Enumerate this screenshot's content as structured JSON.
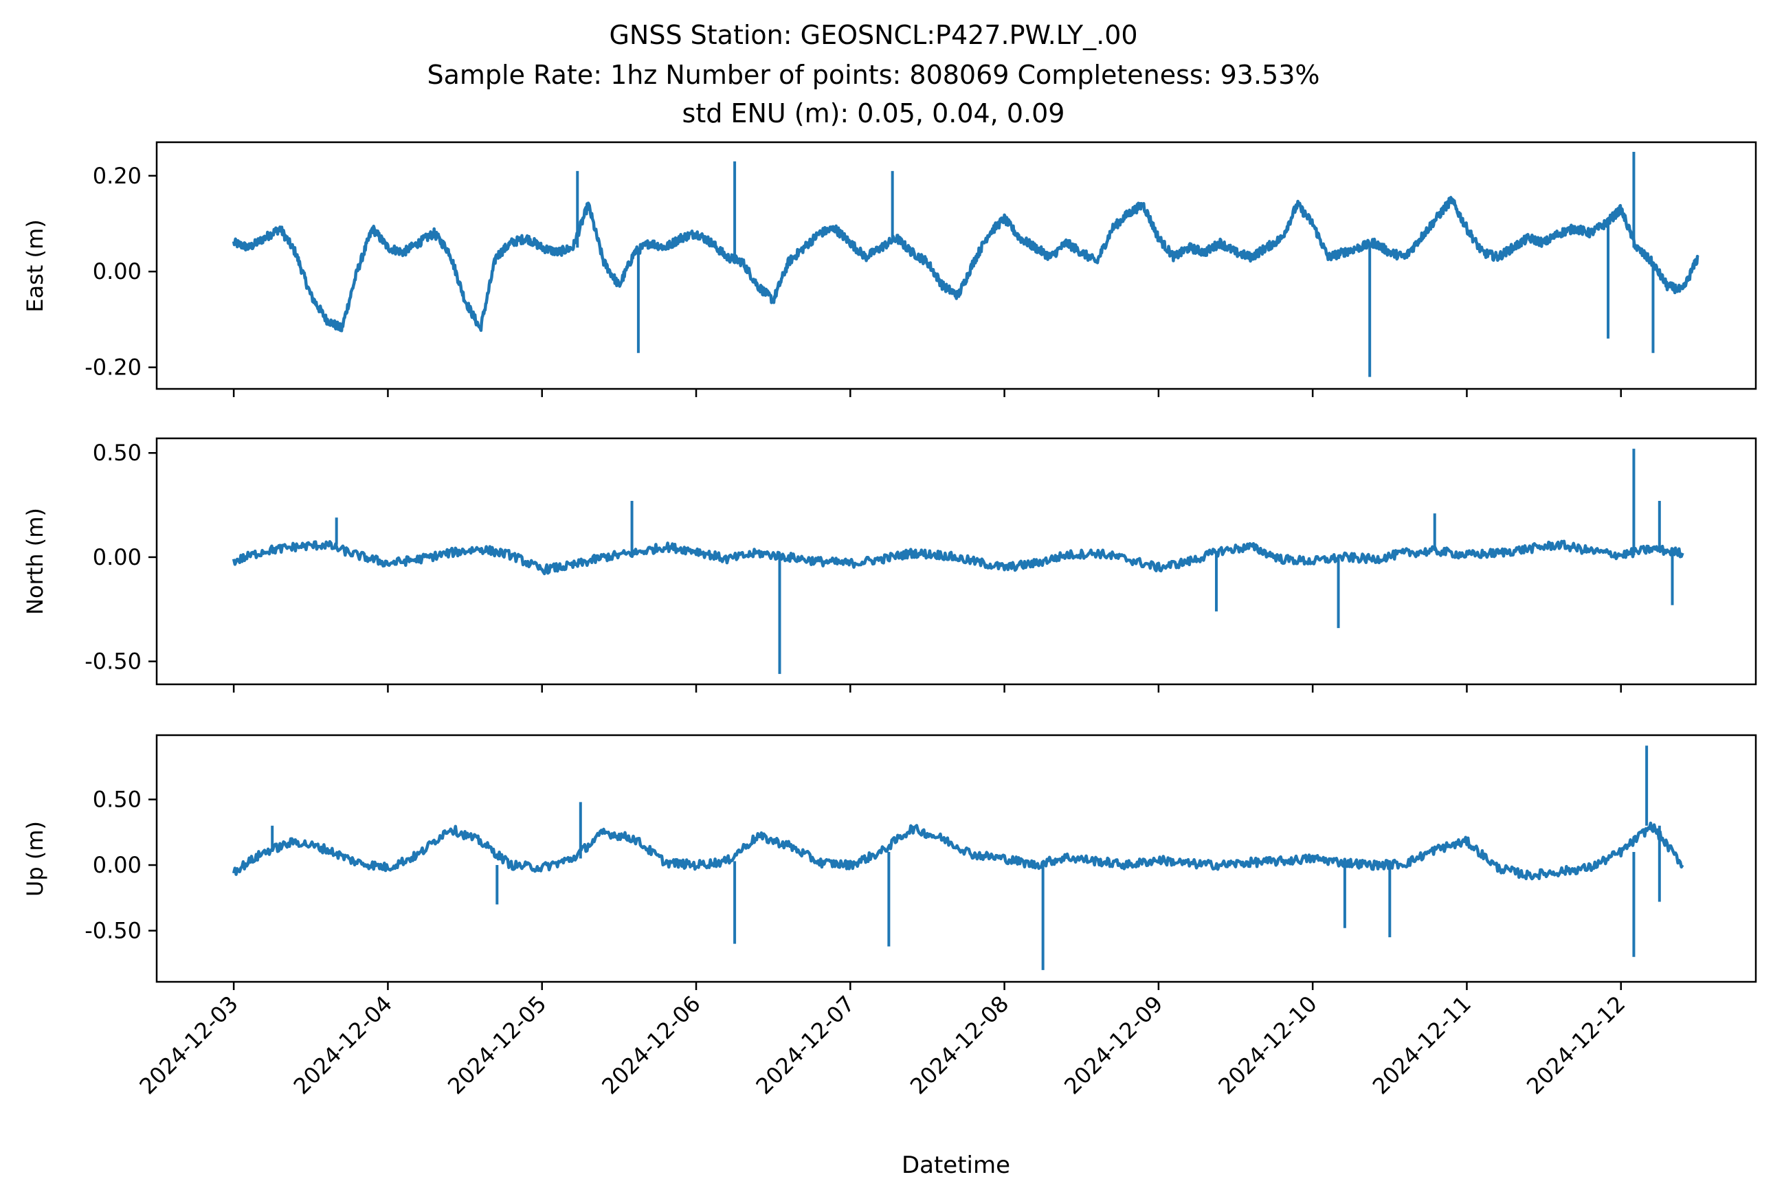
{
  "title_lines": [
    "GNSS Station: GEOSNCL:P427.PW.LY_.00",
    "Sample Rate: 1hz   Number of points: 808069    Completeness:  93.53%",
    "std ENU (m):  0.05, 0.04, 0.09"
  ],
  "xlabel": "Datetime",
  "x_tick_labels": [
    "2024-12-03",
    "2024-12-04",
    "2024-12-05",
    "2024-12-06",
    "2024-12-07",
    "2024-12-08",
    "2024-12-09",
    "2024-12-10",
    "2024-12-11",
    "2024-12-12"
  ],
  "colors": {
    "series": "#1f77b4"
  },
  "chart_data": [
    {
      "type": "line",
      "ylabel": "East (m)",
      "x_range": [
        "2024-12-02T12:00",
        "2024-12-12T21:00"
      ],
      "ylim": [
        -0.245,
        0.27
      ],
      "yticks": [
        0.2,
        0.0,
        -0.2
      ],
      "ytick_labels": [
        "0.20",
        "0.00",
        "-0.20"
      ],
      "grid": false,
      "series": [
        {
          "x": [
            "2024-12-03T00:00",
            "2024-12-03T02:24",
            "2024-12-03T04:48",
            "2024-12-03T07:12",
            "2024-12-03T09:36",
            "2024-12-03T12:00",
            "2024-12-03T14:24",
            "2024-12-03T16:48",
            "2024-12-03T19:12",
            "2024-12-03T21:36",
            "2024-12-04T00:00",
            "2024-12-04T02:24",
            "2024-12-04T04:48",
            "2024-12-04T07:12",
            "2024-12-04T09:36",
            "2024-12-04T12:00",
            "2024-12-04T14:24",
            "2024-12-04T16:48",
            "2024-12-04T19:12",
            "2024-12-04T21:36",
            "2024-12-05T00:00",
            "2024-12-05T02:24",
            "2024-12-05T04:48",
            "2024-12-05T07:12",
            "2024-12-05T09:36",
            "2024-12-05T12:00",
            "2024-12-05T14:24",
            "2024-12-05T16:48",
            "2024-12-05T19:12",
            "2024-12-05T21:36",
            "2024-12-06T00:00",
            "2024-12-06T02:24",
            "2024-12-06T04:48",
            "2024-12-06T07:12",
            "2024-12-06T09:36",
            "2024-12-06T12:00",
            "2024-12-06T14:24",
            "2024-12-06T16:48",
            "2024-12-06T19:12",
            "2024-12-06T21:36",
            "2024-12-07T00:00",
            "2024-12-07T02:24",
            "2024-12-07T04:48",
            "2024-12-07T07:12",
            "2024-12-07T09:36",
            "2024-12-07T12:00",
            "2024-12-07T14:24",
            "2024-12-07T16:48",
            "2024-12-07T19:12",
            "2024-12-07T21:36",
            "2024-12-08T00:00",
            "2024-12-08T02:24",
            "2024-12-08T04:48",
            "2024-12-08T07:12",
            "2024-12-08T09:36",
            "2024-12-08T12:00",
            "2024-12-08T14:24",
            "2024-12-08T16:48",
            "2024-12-08T19:12",
            "2024-12-08T21:36",
            "2024-12-09T00:00",
            "2024-12-09T02:24",
            "2024-12-09T04:48",
            "2024-12-09T07:12",
            "2024-12-09T09:36",
            "2024-12-09T12:00",
            "2024-12-09T14:24",
            "2024-12-09T16:48",
            "2024-12-09T19:12",
            "2024-12-09T21:36",
            "2024-12-10T00:00",
            "2024-12-10T02:24",
            "2024-12-10T04:48",
            "2024-12-10T07:12",
            "2024-12-10T09:36",
            "2024-12-10T12:00",
            "2024-12-10T14:24",
            "2024-12-10T16:48",
            "2024-12-10T19:12",
            "2024-12-10T21:36",
            "2024-12-11T00:00",
            "2024-12-11T02:24",
            "2024-12-11T04:48",
            "2024-12-11T07:12",
            "2024-12-11T09:36",
            "2024-12-11T12:00",
            "2024-12-11T14:24",
            "2024-12-11T16:48",
            "2024-12-11T19:12",
            "2024-12-11T21:36",
            "2024-12-12T00:00",
            "2024-12-12T02:24",
            "2024-12-12T04:48",
            "2024-12-12T07:12",
            "2024-12-12T09:36",
            "2024-12-12T12:00"
          ],
          "y": [
            0.06,
            0.05,
            0.07,
            0.09,
            0.04,
            -0.05,
            -0.1,
            -0.12,
            0.0,
            0.09,
            0.05,
            0.04,
            0.06,
            0.08,
            0.04,
            -0.06,
            -0.12,
            0.03,
            0.06,
            0.07,
            0.05,
            0.04,
            0.05,
            0.14,
            0.02,
            -0.03,
            0.04,
            0.06,
            0.05,
            0.07,
            0.08,
            0.06,
            0.03,
            0.02,
            -0.03,
            -0.06,
            0.02,
            0.05,
            0.08,
            0.09,
            0.06,
            0.03,
            0.05,
            0.07,
            0.04,
            0.02,
            -0.03,
            -0.05,
            0.02,
            0.08,
            0.11,
            0.07,
            0.05,
            0.03,
            0.06,
            0.04,
            0.02,
            0.09,
            0.12,
            0.14,
            0.07,
            0.03,
            0.05,
            0.04,
            0.06,
            0.04,
            0.03,
            0.05,
            0.07,
            0.14,
            0.1,
            0.03,
            0.04,
            0.05,
            0.06,
            0.04,
            0.03,
            0.07,
            0.11,
            0.15,
            0.09,
            0.04,
            0.03,
            0.05,
            0.07,
            0.06,
            0.08,
            0.09,
            0.08,
            0.1,
            0.13,
            0.05,
            0.02,
            -0.03,
            -0.04,
            0.03
          ]
        }
      ],
      "spikes": [
        {
          "x": "2024-12-05T05:31",
          "y": 0.21
        },
        {
          "x": "2024-12-05T15:00",
          "y": -0.17
        },
        {
          "x": "2024-12-06T06:00",
          "y": 0.23
        },
        {
          "x": "2024-12-07T06:34",
          "y": 0.21
        },
        {
          "x": "2024-12-10T08:53",
          "y": -0.22
        },
        {
          "x": "2024-12-11T22:00",
          "y": -0.14
        },
        {
          "x": "2024-12-12T02:00",
          "y": 0.25
        },
        {
          "x": "2024-12-12T05:00",
          "y": -0.17
        }
      ]
    },
    {
      "type": "line",
      "ylabel": "North (m)",
      "x_range": [
        "2024-12-02T12:00",
        "2024-12-12T21:00"
      ],
      "ylim": [
        -0.61,
        0.57
      ],
      "yticks": [
        0.5,
        0.0,
        -0.5
      ],
      "ytick_labels": [
        "0.50",
        "0.00",
        "-0.50"
      ],
      "grid": false,
      "series": [
        {
          "x": [
            "2024-12-03T00:00",
            "2024-12-03T04:48",
            "2024-12-03T09:36",
            "2024-12-03T14:24",
            "2024-12-03T19:12",
            "2024-12-04T00:00",
            "2024-12-04T04:48",
            "2024-12-04T09:36",
            "2024-12-04T14:24",
            "2024-12-04T19:12",
            "2024-12-05T00:00",
            "2024-12-05T04:48",
            "2024-12-05T09:36",
            "2024-12-05T14:24",
            "2024-12-05T19:12",
            "2024-12-06T00:00",
            "2024-12-06T04:48",
            "2024-12-06T09:36",
            "2024-12-06T14:24",
            "2024-12-06T19:12",
            "2024-12-07T00:00",
            "2024-12-07T04:48",
            "2024-12-07T09:36",
            "2024-12-07T14:24",
            "2024-12-07T19:12",
            "2024-12-08T00:00",
            "2024-12-08T04:48",
            "2024-12-08T09:36",
            "2024-12-08T14:24",
            "2024-12-08T19:12",
            "2024-12-09T00:00",
            "2024-12-09T04:48",
            "2024-12-09T09:36",
            "2024-12-09T14:24",
            "2024-12-09T19:12",
            "2024-12-10T00:00",
            "2024-12-10T04:48",
            "2024-12-10T09:36",
            "2024-12-10T14:24",
            "2024-12-10T19:12",
            "2024-12-11T00:00",
            "2024-12-11T04:48",
            "2024-12-11T09:36",
            "2024-12-11T14:24",
            "2024-12-11T19:12",
            "2024-12-12T00:00",
            "2024-12-12T04:48",
            "2024-12-12T09:36"
          ],
          "y": [
            -0.02,
            0.03,
            0.05,
            0.06,
            0.01,
            -0.03,
            -0.01,
            0.02,
            0.04,
            0.01,
            -0.06,
            -0.04,
            0.0,
            0.02,
            0.05,
            0.03,
            -0.01,
            0.02,
            0.0,
            -0.02,
            -0.03,
            -0.01,
            0.02,
            0.01,
            -0.02,
            -0.05,
            -0.03,
            0.01,
            0.02,
            -0.01,
            -0.05,
            -0.02,
            0.03,
            0.05,
            -0.01,
            -0.02,
            0.0,
            -0.01,
            0.02,
            0.03,
            0.01,
            0.02,
            0.04,
            0.06,
            0.03,
            0.01,
            0.04,
            0.02
          ]
        }
      ],
      "spikes": [
        {
          "x": "2024-12-03T16:00",
          "y": 0.19
        },
        {
          "x": "2024-12-05T14:00",
          "y": 0.27
        },
        {
          "x": "2024-12-06T13:00",
          "y": -0.56
        },
        {
          "x": "2024-12-09T09:00",
          "y": -0.26
        },
        {
          "x": "2024-12-10T04:00",
          "y": -0.34
        },
        {
          "x": "2024-12-10T19:00",
          "y": 0.21
        },
        {
          "x": "2024-12-12T02:00",
          "y": 0.52
        },
        {
          "x": "2024-12-12T06:00",
          "y": 0.27
        },
        {
          "x": "2024-12-12T08:00",
          "y": -0.23
        }
      ]
    },
    {
      "type": "line",
      "ylabel": "Up (m)",
      "x_range": [
        "2024-12-02T12:00",
        "2024-12-12T21:00"
      ],
      "ylim": [
        -0.89,
        0.99
      ],
      "yticks": [
        0.5,
        0.0,
        -0.5
      ],
      "ytick_labels": [
        "0.50",
        "0.00",
        "-0.50"
      ],
      "grid": false,
      "series": [
        {
          "x": [
            "2024-12-03T00:00",
            "2024-12-03T04:48",
            "2024-12-03T09:36",
            "2024-12-03T14:24",
            "2024-12-03T19:12",
            "2024-12-04T00:00",
            "2024-12-04T04:48",
            "2024-12-04T09:36",
            "2024-12-04T14:24",
            "2024-12-04T19:12",
            "2024-12-05T00:00",
            "2024-12-05T04:48",
            "2024-12-05T09:36",
            "2024-12-05T14:24",
            "2024-12-05T19:12",
            "2024-12-06T00:00",
            "2024-12-06T04:48",
            "2024-12-06T09:36",
            "2024-12-06T14:24",
            "2024-12-06T19:12",
            "2024-12-07T00:00",
            "2024-12-07T04:48",
            "2024-12-07T09:36",
            "2024-12-07T14:24",
            "2024-12-07T19:12",
            "2024-12-08T00:00",
            "2024-12-08T04:48",
            "2024-12-08T09:36",
            "2024-12-08T14:24",
            "2024-12-08T19:12",
            "2024-12-09T00:00",
            "2024-12-09T04:48",
            "2024-12-09T09:36",
            "2024-12-09T14:24",
            "2024-12-09T19:12",
            "2024-12-10T00:00",
            "2024-12-10T04:48",
            "2024-12-10T09:36",
            "2024-12-10T14:24",
            "2024-12-10T19:12",
            "2024-12-11T00:00",
            "2024-12-11T04:48",
            "2024-12-11T09:36",
            "2024-12-11T14:24",
            "2024-12-11T19:12",
            "2024-12-12T00:00",
            "2024-12-12T04:48",
            "2024-12-12T09:36"
          ],
          "y": [
            -0.05,
            0.1,
            0.18,
            0.12,
            0.02,
            -0.02,
            0.08,
            0.28,
            0.18,
            0.0,
            -0.02,
            0.05,
            0.25,
            0.2,
            0.02,
            0.0,
            0.03,
            0.22,
            0.15,
            0.02,
            0.0,
            0.1,
            0.28,
            0.2,
            0.08,
            0.05,
            0.0,
            0.06,
            0.03,
            0.0,
            0.04,
            0.01,
            0.0,
            0.02,
            0.03,
            0.05,
            0.02,
            0.0,
            0.01,
            0.12,
            0.18,
            -0.02,
            -0.08,
            -0.05,
            -0.02,
            0.1,
            0.3,
            0.0
          ]
        }
      ],
      "spikes": [
        {
          "x": "2024-12-03T06:00",
          "y": 0.3
        },
        {
          "x": "2024-12-04T17:00",
          "y": -0.3
        },
        {
          "x": "2024-12-05T06:00",
          "y": 0.48
        },
        {
          "x": "2024-12-06T06:00",
          "y": -0.6
        },
        {
          "x": "2024-12-07T06:00",
          "y": -0.62
        },
        {
          "x": "2024-12-08T06:00",
          "y": -0.8
        },
        {
          "x": "2024-12-10T05:00",
          "y": -0.48
        },
        {
          "x": "2024-12-10T12:00",
          "y": -0.55
        },
        {
          "x": "2024-12-12T02:00",
          "y": -0.7
        },
        {
          "x": "2024-12-12T04:00",
          "y": 0.91
        },
        {
          "x": "2024-12-12T06:00",
          "y": -0.28
        }
      ]
    }
  ]
}
